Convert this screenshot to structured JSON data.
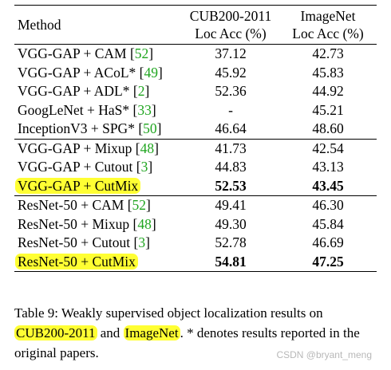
{
  "table": {
    "header": {
      "method": "Method",
      "col1_line1": "CUB200-2011",
      "col1_line2": "Loc Acc (%)",
      "col2_line1": "ImageNet",
      "col2_line2": "Loc Acc (%)"
    },
    "groups": [
      {
        "rows": [
          {
            "method": "VGG-GAP + CAM ",
            "ref": "52",
            "cub": "37.12",
            "imagenet": "42.73",
            "highlight": false,
            "bold": false
          },
          {
            "method": "VGG-GAP + ACoL* ",
            "ref": "49",
            "cub": "45.92",
            "imagenet": "45.83",
            "highlight": false,
            "bold": false
          },
          {
            "method": "VGG-GAP + ADL* ",
            "ref": "2",
            "cub": "52.36",
            "imagenet": "44.92",
            "highlight": false,
            "bold": false
          },
          {
            "method": "GoogLeNet + HaS* ",
            "ref": "33",
            "cub": "-",
            "imagenet": "45.21",
            "highlight": false,
            "bold": false
          },
          {
            "method": "InceptionV3 + SPG* ",
            "ref": "50",
            "cub": "46.64",
            "imagenet": "48.60",
            "highlight": false,
            "bold": false
          }
        ]
      },
      {
        "rows": [
          {
            "method": "VGG-GAP + Mixup ",
            "ref": "48",
            "cub": "41.73",
            "imagenet": "42.54",
            "highlight": false,
            "bold": false
          },
          {
            "method": "VGG-GAP + Cutout ",
            "ref": "3",
            "cub": "44.83",
            "imagenet": "43.13",
            "highlight": false,
            "bold": false
          },
          {
            "method": "VGG-GAP + CutMix",
            "ref": "",
            "cub": "52.53",
            "imagenet": "43.45",
            "highlight": true,
            "bold": true
          }
        ]
      },
      {
        "rows": [
          {
            "method": "ResNet-50 + CAM ",
            "ref": "52",
            "cub": "49.41",
            "imagenet": "46.30",
            "highlight": false,
            "bold": false
          },
          {
            "method": "ResNet-50 + Mixup ",
            "ref": "48",
            "cub": "49.30",
            "imagenet": "45.84",
            "highlight": false,
            "bold": false
          },
          {
            "method": "ResNet-50 + Cutout ",
            "ref": "3",
            "cub": "52.78",
            "imagenet": "46.69",
            "highlight": false,
            "bold": false
          },
          {
            "method": "ResNet-50 + CutMix",
            "ref": "",
            "cub": "54.81",
            "imagenet": "47.25",
            "highlight": true,
            "bold": true
          }
        ]
      }
    ]
  },
  "caption": {
    "part1": "Table 9: Weakly supervised object localization results on ",
    "hl1": "CUB200-2011",
    "part2": " and ",
    "hl2": "ImageNet",
    "part3": ". * denotes results reported in the original papers."
  },
  "watermark": "CSDN @bryant_meng",
  "colors": {
    "highlight": "#ffff33",
    "reference": "#1fa51f"
  }
}
